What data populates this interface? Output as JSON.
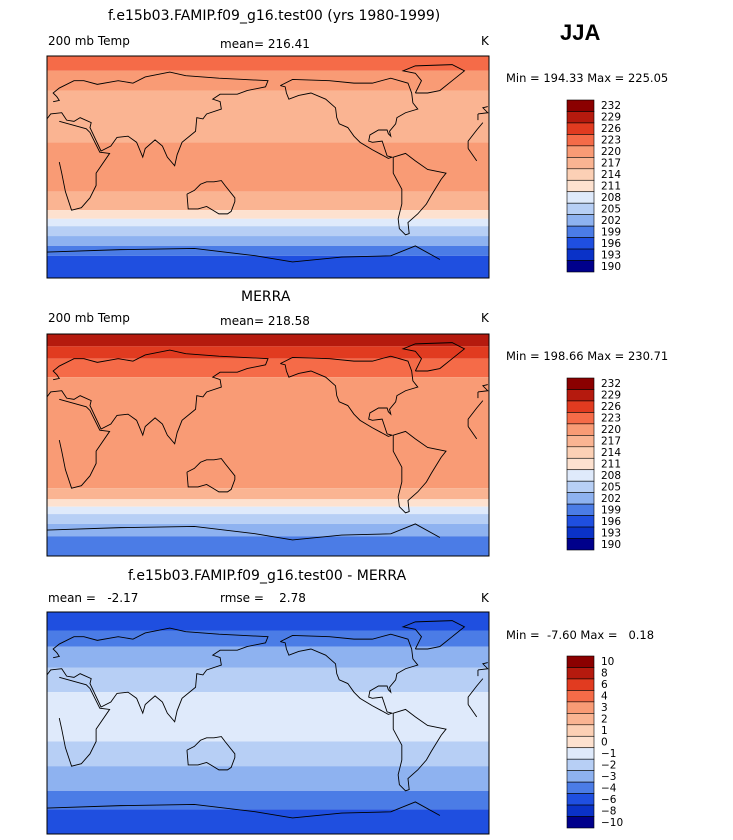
{
  "season": "JJA",
  "panels": [
    {
      "title": "f.e15b03.FAMIP.f09_g16.test00 (yrs 1980-1999)",
      "left_label": "200 mb Temp",
      "center_label": "mean= 216.41",
      "units": "K",
      "minmax": "Min = 194.33 Max = 225.05",
      "levels": [
        "232",
        "229",
        "226",
        "223",
        "220",
        "217",
        "214",
        "211",
        "208",
        "205",
        "202",
        "199",
        "196",
        "193",
        "190"
      ],
      "map_bands": [
        {
          "lat": 90,
          "color": "#f56b48"
        },
        {
          "lat": 78,
          "color": "#f99b75"
        },
        {
          "lat": 62,
          "color": "#fab492"
        },
        {
          "lat": 20,
          "color": "#f99b75"
        },
        {
          "lat": -20,
          "color": "#fab492"
        },
        {
          "lat": -35,
          "color": "#fde1cf"
        },
        {
          "lat": -42,
          "color": "#dfeafb"
        },
        {
          "lat": -48,
          "color": "#b7cff5"
        },
        {
          "lat": -56,
          "color": "#8eb2f0"
        },
        {
          "lat": -64,
          "color": "#4b7ce6"
        },
        {
          "lat": -72,
          "color": "#1f4fe0"
        }
      ]
    },
    {
      "title": "MERRA",
      "left_label": "200 mb Temp",
      "center_label": "mean= 218.58",
      "units": "K",
      "minmax": "Min = 198.66 Max = 230.71",
      "levels": [
        "232",
        "229",
        "226",
        "223",
        "220",
        "217",
        "214",
        "211",
        "208",
        "205",
        "202",
        "199",
        "196",
        "193",
        "190"
      ],
      "map_bands": [
        {
          "lat": 90,
          "color": "#b51a0e"
        },
        {
          "lat": 80,
          "color": "#e13b20"
        },
        {
          "lat": 70,
          "color": "#f56b48"
        },
        {
          "lat": 55,
          "color": "#f99b75"
        },
        {
          "lat": -35,
          "color": "#fab492"
        },
        {
          "lat": -44,
          "color": "#fde1cf"
        },
        {
          "lat": -50,
          "color": "#dfeafb"
        },
        {
          "lat": -56,
          "color": "#b7cff5"
        },
        {
          "lat": -64,
          "color": "#8eb2f0"
        },
        {
          "lat": -74,
          "color": "#4b7ce6"
        }
      ]
    },
    {
      "title": "f.e15b03.FAMIP.f09_g16.test00 - MERRA",
      "left_label": "mean =   -2.17",
      "center_label": "rmse =    2.78",
      "units": "K",
      "minmax": "Min =  -7.60 Max =   0.18",
      "levels": [
        "10",
        "8",
        "6",
        "4",
        "3",
        "2",
        "1",
        "0",
        "−1",
        "−2",
        "−3",
        "−4",
        "−6",
        "−8",
        "−10"
      ],
      "map_bands": [
        {
          "lat": 90,
          "color": "#1f4fe0"
        },
        {
          "lat": 75,
          "color": "#4b7ce6"
        },
        {
          "lat": 62,
          "color": "#8eb2f0"
        },
        {
          "lat": 45,
          "color": "#b7cff5"
        },
        {
          "lat": 25,
          "color": "#dfeafb"
        },
        {
          "lat": -15,
          "color": "#b7cff5"
        },
        {
          "lat": -35,
          "color": "#8eb2f0"
        },
        {
          "lat": -55,
          "color": "#4b7ce6"
        },
        {
          "lat": -70,
          "color": "#1f4fe0"
        }
      ]
    }
  ],
  "colorbar_colors": [
    "#8b0000",
    "#b51a0e",
    "#e13b20",
    "#f56b48",
    "#f99b75",
    "#fab492",
    "#fcd0b5",
    "#fde1cf",
    "#dfeafb",
    "#b7cff5",
    "#8eb2f0",
    "#4b7ce6",
    "#1f4fe0",
    "#0a32c8",
    "#00008b"
  ]
}
